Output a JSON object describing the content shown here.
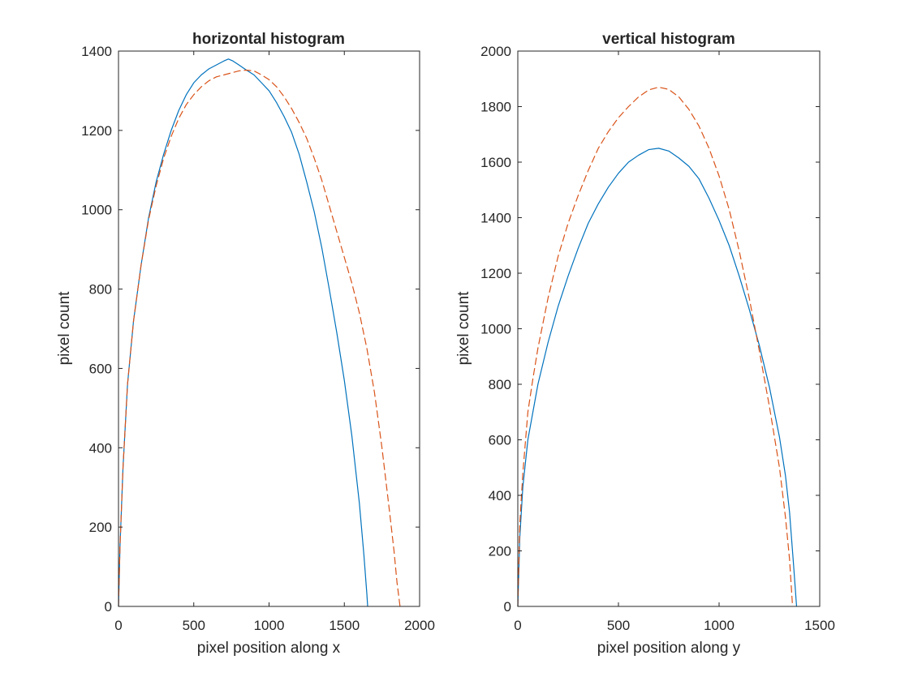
{
  "chart_data": [
    {
      "type": "line",
      "title": "horizontal histogram",
      "xlabel": "pixel position along x",
      "ylabel": "pixel count",
      "xlim": [
        0,
        2000
      ],
      "ylim": [
        0,
        1400
      ],
      "xticks": [
        0,
        500,
        1000,
        1500,
        2000
      ],
      "yticks": [
        0,
        200,
        400,
        600,
        800,
        1000,
        1200,
        1400
      ],
      "xtick_labels": [
        "0",
        "500",
        "1000",
        "1500",
        "2000"
      ],
      "ytick_labels": [
        "0",
        "200",
        "400",
        "600",
        "800",
        "1000",
        "1200",
        "1400"
      ],
      "grid": false,
      "legend": "none",
      "series": [
        {
          "color": "#0072BD",
          "style": "solid",
          "x": [
            0,
            10,
            30,
            60,
            100,
            150,
            200,
            250,
            300,
            350,
            400,
            450,
            500,
            550,
            600,
            650,
            700,
            730,
            760,
            800,
            850,
            900,
            950,
            1000,
            1050,
            1100,
            1150,
            1200,
            1250,
            1300,
            1350,
            1400,
            1450,
            1500,
            1550,
            1600,
            1630,
            1650,
            1655
          ],
          "y": [
            0,
            150,
            350,
            560,
            720,
            860,
            980,
            1070,
            1140,
            1200,
            1250,
            1290,
            1320,
            1340,
            1355,
            1365,
            1375,
            1380,
            1375,
            1365,
            1352,
            1340,
            1320,
            1300,
            1270,
            1235,
            1195,
            1140,
            1070,
            995,
            905,
            800,
            690,
            570,
            430,
            260,
            130,
            30,
            0
          ]
        },
        {
          "color": "#D95319",
          "style": "dashed",
          "x": [
            0,
            10,
            30,
            60,
            100,
            150,
            200,
            250,
            300,
            350,
            400,
            450,
            500,
            550,
            600,
            650,
            700,
            750,
            800,
            850,
            900,
            950,
            1000,
            1050,
            1100,
            1150,
            1200,
            1250,
            1300,
            1350,
            1400,
            1450,
            1500,
            1550,
            1600,
            1650,
            1700,
            1750,
            1800,
            1830,
            1850,
            1870
          ],
          "y": [
            0,
            150,
            350,
            560,
            720,
            860,
            975,
            1060,
            1130,
            1185,
            1230,
            1265,
            1290,
            1310,
            1325,
            1335,
            1340,
            1345,
            1350,
            1352,
            1350,
            1340,
            1328,
            1310,
            1285,
            1255,
            1220,
            1180,
            1130,
            1075,
            1010,
            945,
            880,
            815,
            740,
            650,
            540,
            400,
            240,
            140,
            60,
            0
          ]
        }
      ]
    },
    {
      "type": "line",
      "title": "vertical histogram",
      "xlabel": "pixel position along y",
      "ylabel": "pixel count",
      "xlim": [
        0,
        1500
      ],
      "ylim": [
        0,
        2000
      ],
      "xticks": [
        0,
        500,
        1000,
        1500
      ],
      "yticks": [
        0,
        200,
        400,
        600,
        800,
        1000,
        1200,
        1400,
        1600,
        1800,
        2000
      ],
      "xtick_labels": [
        "0",
        "500",
        "1000",
        "1500"
      ],
      "ytick_labels": [
        "0",
        "200",
        "400",
        "600",
        "800",
        "1000",
        "1200",
        "1400",
        "1600",
        "1800",
        "2000"
      ],
      "grid": false,
      "legend": "none",
      "series": [
        {
          "color": "#0072BD",
          "style": "solid",
          "x": [
            0,
            10,
            25,
            50,
            75,
            100,
            150,
            200,
            250,
            300,
            350,
            400,
            450,
            500,
            550,
            600,
            650,
            700,
            750,
            800,
            850,
            900,
            950,
            1000,
            1050,
            1100,
            1150,
            1200,
            1250,
            1300,
            1330,
            1350,
            1370,
            1385
          ],
          "y": [
            0,
            250,
            430,
            600,
            700,
            800,
            950,
            1080,
            1190,
            1290,
            1380,
            1450,
            1510,
            1560,
            1600,
            1625,
            1645,
            1650,
            1640,
            1615,
            1585,
            1540,
            1470,
            1390,
            1300,
            1190,
            1070,
            940,
            790,
            610,
            470,
            340,
            150,
            0
          ]
        },
        {
          "color": "#D95319",
          "style": "dashed",
          "x": [
            0,
            10,
            25,
            50,
            75,
            100,
            150,
            200,
            250,
            300,
            350,
            400,
            450,
            500,
            550,
            600,
            650,
            700,
            750,
            800,
            850,
            900,
            950,
            1000,
            1050,
            1100,
            1150,
            1200,
            1250,
            1300,
            1330,
            1350,
            1365
          ],
          "y": [
            0,
            300,
            480,
            700,
            820,
            930,
            1110,
            1260,
            1380,
            1480,
            1570,
            1650,
            1710,
            1760,
            1800,
            1835,
            1860,
            1870,
            1862,
            1835,
            1790,
            1730,
            1650,
            1550,
            1430,
            1280,
            1110,
            920,
            720,
            500,
            320,
            170,
            0
          ]
        }
      ]
    }
  ]
}
